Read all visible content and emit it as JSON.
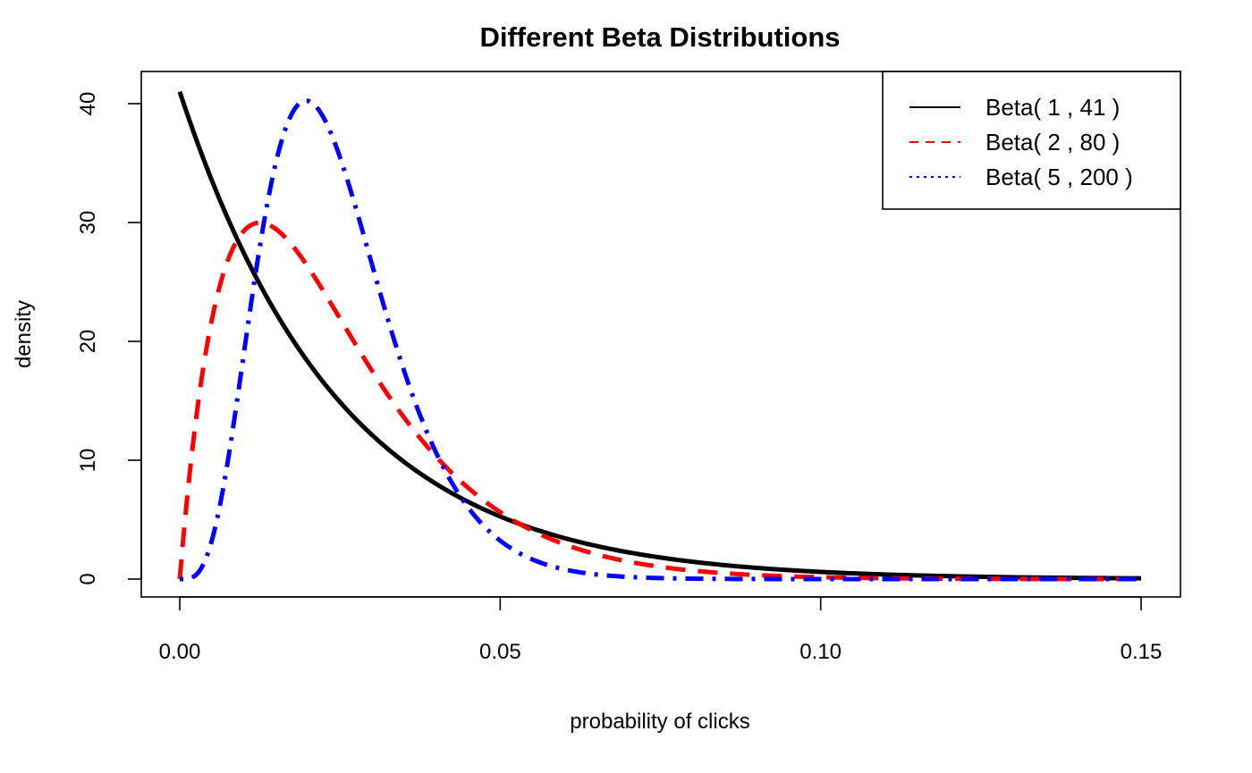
{
  "chart_data": {
    "type": "line",
    "title": "Different Beta Distributions",
    "xlabel": "probability of clicks",
    "ylabel": "density",
    "xlim": [
      0.0,
      0.15
    ],
    "ylim": [
      0,
      41
    ],
    "xticks": [
      0.0,
      0.05,
      0.1,
      0.15
    ],
    "xtick_labels": [
      "0.00",
      "0.05",
      "0.10",
      "0.15"
    ],
    "yticks": [
      0,
      10,
      20,
      30,
      40
    ],
    "ytick_labels": [
      "0",
      "10",
      "20",
      "30",
      "40"
    ],
    "legend_position": "top-right",
    "series": [
      {
        "name": "Beta( 1 , 41 )",
        "alpha": 1,
        "beta": 41,
        "color": "#000000",
        "style": "solid"
      },
      {
        "name": "Beta( 2 , 80 )",
        "alpha": 2,
        "beta": 80,
        "color": "#ff0000",
        "style": "dashed"
      },
      {
        "name": "Beta( 5 , 200 )",
        "alpha": 5,
        "beta": 200,
        "color": "#0000ff",
        "style": "dotdash"
      }
    ]
  }
}
